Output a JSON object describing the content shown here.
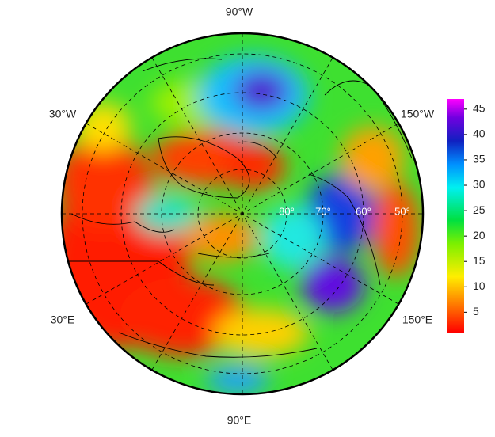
{
  "map": {
    "longitude_labels": [
      "90°W",
      "30°W",
      "150°W",
      "30°E",
      "150°E",
      "90°E"
    ],
    "latitude_labels": [
      "80°",
      "70°",
      "60°",
      "50°"
    ],
    "colorbar": {
      "range": [
        1,
        47
      ],
      "ticks": [
        5,
        10,
        15,
        20,
        25,
        30,
        35,
        40,
        45
      ]
    }
  }
}
